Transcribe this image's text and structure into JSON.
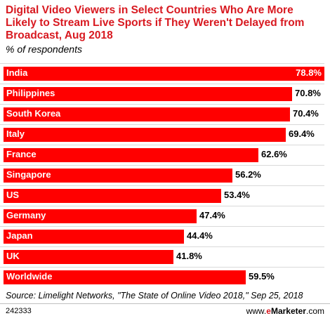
{
  "header": {
    "title": "Digital Video Viewers in Select Countries Who Are More Likely to Stream Live Sports if They Weren't Delayed from Broadcast, Aug 2018",
    "subtitle": "% of respondents"
  },
  "footer": {
    "source": "Source: Limelight Networks, \"The State of Online Video 2018,\" Sep 25, 2018",
    "chart_id": "242333",
    "brand_prefix": "www.",
    "brand_e": "e",
    "brand_name": "Marketer",
    "brand_suffix": ".com"
  },
  "colors": {
    "bar": "#ff0000",
    "title": "#d81920"
  },
  "chart_data": {
    "type": "bar",
    "orientation": "horizontal",
    "title": "Digital Video Viewers in Select Countries Who Are More Likely to Stream Live Sports if They Weren't Delayed from Broadcast, Aug 2018",
    "subtitle": "% of respondents",
    "categories": [
      "India",
      "Philippines",
      "South Korea",
      "Italy",
      "France",
      "Singapore",
      "US",
      "Germany",
      "Japan",
      "UK",
      "Worldwide"
    ],
    "values": [
      78.8,
      70.8,
      70.4,
      69.4,
      62.6,
      56.2,
      53.4,
      47.4,
      44.4,
      41.8,
      59.5
    ],
    "value_labels": [
      "78.8%",
      "70.8%",
      "70.4%",
      "69.4%",
      "62.6%",
      "56.2%",
      "53.4%",
      "47.4%",
      "44.4%",
      "41.8%",
      "59.5%"
    ],
    "xlim": [
      0,
      78.8
    ],
    "grid": false,
    "legend": "none"
  }
}
